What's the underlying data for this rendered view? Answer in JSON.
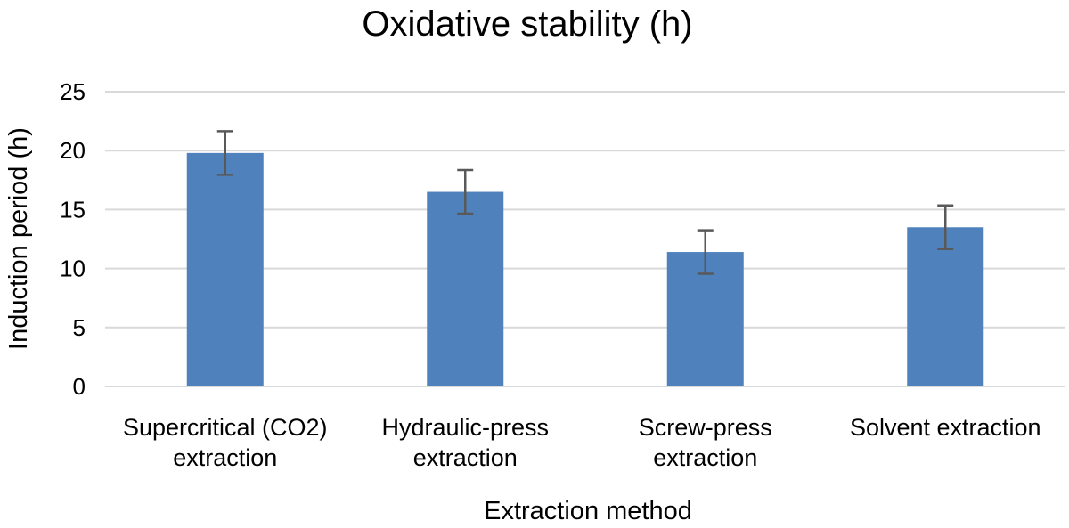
{
  "chart_data": {
    "type": "bar",
    "title": "Oxidative stability (h)",
    "xlabel": "Extraction method",
    "ylabel": "Induction period (h)",
    "categories": [
      [
        "Supercritical (CO2)",
        "extraction"
      ],
      [
        "Hydraulic-press",
        "extraction"
      ],
      [
        "Screw-press",
        "extraction"
      ],
      [
        "Solvent extraction"
      ]
    ],
    "values": [
      19.8,
      16.5,
      11.4,
      13.5
    ],
    "error": [
      1.85,
      1.85,
      1.85,
      1.85
    ],
    "ylim": [
      0,
      25
    ],
    "yticks": [
      0,
      5,
      10,
      15,
      20,
      25
    ],
    "grid": true,
    "legend": "none",
    "bar_color": "#4f81bd",
    "error_color": "#595959",
    "grid_color": "#d9d9d9"
  }
}
